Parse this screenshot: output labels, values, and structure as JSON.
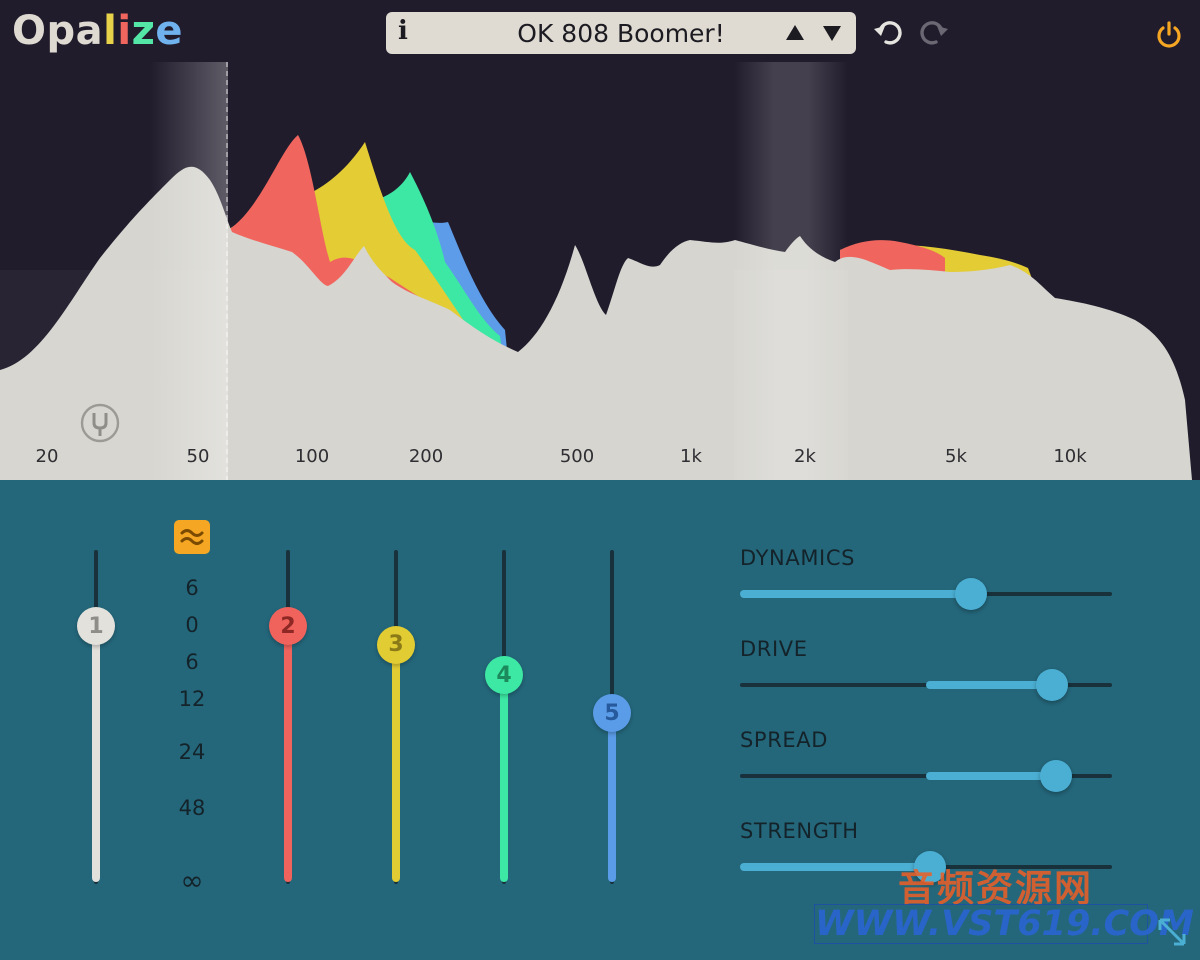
{
  "header": {
    "logo_text": "Opalize",
    "logo_colors": [
      "#dedad2",
      "#dedad2",
      "#dedad2",
      "#e8d24a",
      "#f0665e",
      "#54e6a7",
      "#6fb2ee"
    ],
    "preset": {
      "info_label": "i",
      "name": "OK 808 Boomer!",
      "prev_icon": "triangle-up-icon",
      "next_icon": "triangle-down-icon"
    },
    "undo_icon": "undo-icon",
    "redo_icon": "redo-icon",
    "power_icon": "power-icon",
    "power_color": "#f5a623"
  },
  "spectrum": {
    "frequency_labels": [
      "20",
      "50",
      "100",
      "200",
      "500",
      "1k",
      "2k",
      "5k",
      "10k"
    ],
    "tuner_icon": "tuning-fork-icon",
    "band_colors": {
      "band2": "#f0665e",
      "band3": "#e3cc34",
      "band4": "#3de8a4",
      "band5": "#5d9ce8",
      "base": "#d6d5cf"
    }
  },
  "faders": {
    "toggle_icon": "waves-icon",
    "db_scale": [
      "6",
      "0",
      "6",
      "12",
      "24",
      "48",
      "∞"
    ],
    "bands": [
      {
        "label": "1",
        "color": "#e3e1dc",
        "text_color": "#8f8d88",
        "level_db": 0
      },
      {
        "label": "2",
        "color": "#f0635d",
        "text_color": "#8e2824",
        "level_db": 0
      },
      {
        "label": "3",
        "color": "#e2cc33",
        "text_color": "#8a7b18",
        "level_db": -3
      },
      {
        "label": "4",
        "color": "#3de8a4",
        "text_color": "#1c8a5c",
        "level_db": -8
      },
      {
        "label": "5",
        "color": "#5b9ce8",
        "text_color": "#275a9c",
        "level_db": -15
      }
    ]
  },
  "controls": [
    {
      "label": "DYNAMICS",
      "value": 0.62,
      "bipolar": false
    },
    {
      "label": "DRIVE",
      "value": 0.84,
      "bipolar": true
    },
    {
      "label": "SPREAD",
      "value": 0.85,
      "bipolar": true
    },
    {
      "label": "STRENGTH",
      "value": 0.51,
      "bipolar": false
    }
  ],
  "watermark": {
    "chinese": "音频资源网",
    "url": "WWW.VST619.COM"
  },
  "resize_icon": "resize-icon"
}
